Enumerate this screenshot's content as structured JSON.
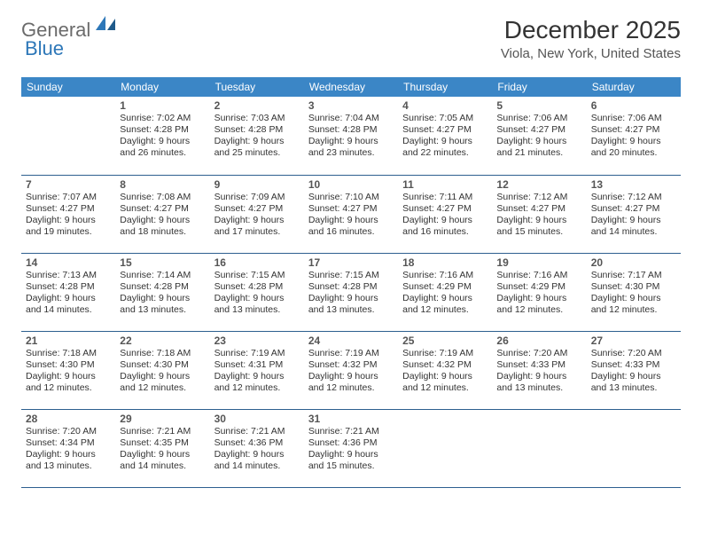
{
  "logo": {
    "text_general": "General",
    "text_blue": "Blue",
    "icon_color": "#2d77b8"
  },
  "title": "December 2025",
  "location": "Viola, New York, United States",
  "header_bg": "#3b86c6",
  "header_text_color": "#ffffff",
  "row_border_color": "#2d5f8f",
  "daynames": [
    "Sunday",
    "Monday",
    "Tuesday",
    "Wednesday",
    "Thursday",
    "Friday",
    "Saturday"
  ],
  "weeks": [
    [
      null,
      {
        "n": "1",
        "sr": "Sunrise: 7:02 AM",
        "ss": "Sunset: 4:28 PM",
        "d1": "Daylight: 9 hours",
        "d2": "and 26 minutes."
      },
      {
        "n": "2",
        "sr": "Sunrise: 7:03 AM",
        "ss": "Sunset: 4:28 PM",
        "d1": "Daylight: 9 hours",
        "d2": "and 25 minutes."
      },
      {
        "n": "3",
        "sr": "Sunrise: 7:04 AM",
        "ss": "Sunset: 4:28 PM",
        "d1": "Daylight: 9 hours",
        "d2": "and 23 minutes."
      },
      {
        "n": "4",
        "sr": "Sunrise: 7:05 AM",
        "ss": "Sunset: 4:27 PM",
        "d1": "Daylight: 9 hours",
        "d2": "and 22 minutes."
      },
      {
        "n": "5",
        "sr": "Sunrise: 7:06 AM",
        "ss": "Sunset: 4:27 PM",
        "d1": "Daylight: 9 hours",
        "d2": "and 21 minutes."
      },
      {
        "n": "6",
        "sr": "Sunrise: 7:06 AM",
        "ss": "Sunset: 4:27 PM",
        "d1": "Daylight: 9 hours",
        "d2": "and 20 minutes."
      }
    ],
    [
      {
        "n": "7",
        "sr": "Sunrise: 7:07 AM",
        "ss": "Sunset: 4:27 PM",
        "d1": "Daylight: 9 hours",
        "d2": "and 19 minutes."
      },
      {
        "n": "8",
        "sr": "Sunrise: 7:08 AM",
        "ss": "Sunset: 4:27 PM",
        "d1": "Daylight: 9 hours",
        "d2": "and 18 minutes."
      },
      {
        "n": "9",
        "sr": "Sunrise: 7:09 AM",
        "ss": "Sunset: 4:27 PM",
        "d1": "Daylight: 9 hours",
        "d2": "and 17 minutes."
      },
      {
        "n": "10",
        "sr": "Sunrise: 7:10 AM",
        "ss": "Sunset: 4:27 PM",
        "d1": "Daylight: 9 hours",
        "d2": "and 16 minutes."
      },
      {
        "n": "11",
        "sr": "Sunrise: 7:11 AM",
        "ss": "Sunset: 4:27 PM",
        "d1": "Daylight: 9 hours",
        "d2": "and 16 minutes."
      },
      {
        "n": "12",
        "sr": "Sunrise: 7:12 AM",
        "ss": "Sunset: 4:27 PM",
        "d1": "Daylight: 9 hours",
        "d2": "and 15 minutes."
      },
      {
        "n": "13",
        "sr": "Sunrise: 7:12 AM",
        "ss": "Sunset: 4:27 PM",
        "d1": "Daylight: 9 hours",
        "d2": "and 14 minutes."
      }
    ],
    [
      {
        "n": "14",
        "sr": "Sunrise: 7:13 AM",
        "ss": "Sunset: 4:28 PM",
        "d1": "Daylight: 9 hours",
        "d2": "and 14 minutes."
      },
      {
        "n": "15",
        "sr": "Sunrise: 7:14 AM",
        "ss": "Sunset: 4:28 PM",
        "d1": "Daylight: 9 hours",
        "d2": "and 13 minutes."
      },
      {
        "n": "16",
        "sr": "Sunrise: 7:15 AM",
        "ss": "Sunset: 4:28 PM",
        "d1": "Daylight: 9 hours",
        "d2": "and 13 minutes."
      },
      {
        "n": "17",
        "sr": "Sunrise: 7:15 AM",
        "ss": "Sunset: 4:28 PM",
        "d1": "Daylight: 9 hours",
        "d2": "and 13 minutes."
      },
      {
        "n": "18",
        "sr": "Sunrise: 7:16 AM",
        "ss": "Sunset: 4:29 PM",
        "d1": "Daylight: 9 hours",
        "d2": "and 12 minutes."
      },
      {
        "n": "19",
        "sr": "Sunrise: 7:16 AM",
        "ss": "Sunset: 4:29 PM",
        "d1": "Daylight: 9 hours",
        "d2": "and 12 minutes."
      },
      {
        "n": "20",
        "sr": "Sunrise: 7:17 AM",
        "ss": "Sunset: 4:30 PM",
        "d1": "Daylight: 9 hours",
        "d2": "and 12 minutes."
      }
    ],
    [
      {
        "n": "21",
        "sr": "Sunrise: 7:18 AM",
        "ss": "Sunset: 4:30 PM",
        "d1": "Daylight: 9 hours",
        "d2": "and 12 minutes."
      },
      {
        "n": "22",
        "sr": "Sunrise: 7:18 AM",
        "ss": "Sunset: 4:30 PM",
        "d1": "Daylight: 9 hours",
        "d2": "and 12 minutes."
      },
      {
        "n": "23",
        "sr": "Sunrise: 7:19 AM",
        "ss": "Sunset: 4:31 PM",
        "d1": "Daylight: 9 hours",
        "d2": "and 12 minutes."
      },
      {
        "n": "24",
        "sr": "Sunrise: 7:19 AM",
        "ss": "Sunset: 4:32 PM",
        "d1": "Daylight: 9 hours",
        "d2": "and 12 minutes."
      },
      {
        "n": "25",
        "sr": "Sunrise: 7:19 AM",
        "ss": "Sunset: 4:32 PM",
        "d1": "Daylight: 9 hours",
        "d2": "and 12 minutes."
      },
      {
        "n": "26",
        "sr": "Sunrise: 7:20 AM",
        "ss": "Sunset: 4:33 PM",
        "d1": "Daylight: 9 hours",
        "d2": "and 13 minutes."
      },
      {
        "n": "27",
        "sr": "Sunrise: 7:20 AM",
        "ss": "Sunset: 4:33 PM",
        "d1": "Daylight: 9 hours",
        "d2": "and 13 minutes."
      }
    ],
    [
      {
        "n": "28",
        "sr": "Sunrise: 7:20 AM",
        "ss": "Sunset: 4:34 PM",
        "d1": "Daylight: 9 hours",
        "d2": "and 13 minutes."
      },
      {
        "n": "29",
        "sr": "Sunrise: 7:21 AM",
        "ss": "Sunset: 4:35 PM",
        "d1": "Daylight: 9 hours",
        "d2": "and 14 minutes."
      },
      {
        "n": "30",
        "sr": "Sunrise: 7:21 AM",
        "ss": "Sunset: 4:36 PM",
        "d1": "Daylight: 9 hours",
        "d2": "and 14 minutes."
      },
      {
        "n": "31",
        "sr": "Sunrise: 7:21 AM",
        "ss": "Sunset: 4:36 PM",
        "d1": "Daylight: 9 hours",
        "d2": "and 15 minutes."
      },
      null,
      null,
      null
    ]
  ]
}
